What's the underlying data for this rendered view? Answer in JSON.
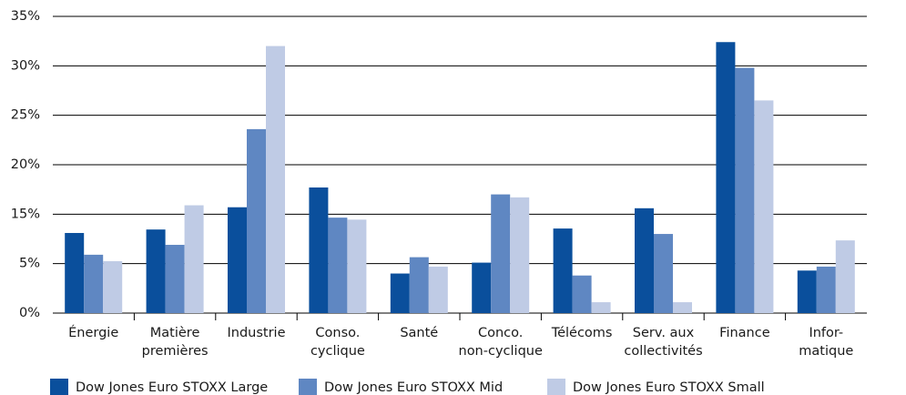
{
  "chart_data": {
    "type": "bar",
    "categories": [
      [
        "Énergie"
      ],
      [
        "Matière",
        "premières"
      ],
      [
        "Industrie"
      ],
      [
        "Conso.",
        "cyclique"
      ],
      [
        "Santé"
      ],
      [
        "Conco.",
        "non-cyclique"
      ],
      [
        "Télécoms"
      ],
      [
        "Serv. aux",
        "collectivités"
      ],
      [
        "Finance"
      ],
      [
        "Infor-",
        "matique"
      ]
    ],
    "series": [
      {
        "name": "Dow Jones Euro STOXX Large",
        "color": "#0a4f9c",
        "values": [
          11.2,
          11.9,
          15.7,
          17.7,
          4.0,
          5.2,
          12.1,
          15.6,
          32.4,
          4.3
        ]
      },
      {
        "name": "Dow Jones Euro STOXX Mid",
        "color": "#5f87c2",
        "values": [
          6.8,
          8.8,
          23.6,
          14.3,
          6.3,
          17.0,
          3.8,
          11.0,
          29.8,
          4.7
        ]
      },
      {
        "name": "Dow Jones Euro STOXX Small",
        "color": "#bfcbe5",
        "values": [
          5.5,
          15.9,
          32.0,
          13.9,
          4.7,
          16.7,
          1.1,
          1.1,
          26.5,
          9.7
        ]
      }
    ],
    "ylim": [
      0,
      35
    ],
    "yticks": [
      {
        "value": 0,
        "label": "0%"
      },
      {
        "value": 5,
        "label": "5%"
      },
      {
        "value": 15,
        "label": "15%"
      },
      {
        "value": 20,
        "label": "20%"
      },
      {
        "value": 25,
        "label": "25%"
      },
      {
        "value": 30,
        "label": "30%"
      },
      {
        "value": 35,
        "label": "35%"
      }
    ],
    "grid": true
  }
}
